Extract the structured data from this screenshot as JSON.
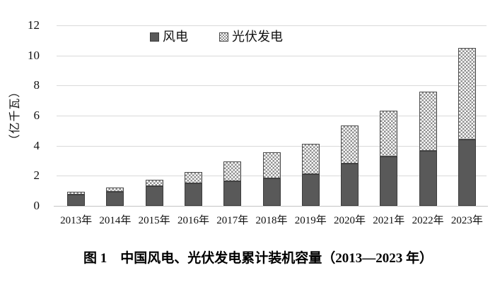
{
  "figure": {
    "caption": "图 1　中国风电、光伏发电累计装机容量（2013—2023 年）"
  },
  "chart_data": {
    "type": "bar",
    "stacked": true,
    "title": "",
    "xlabel": "",
    "ylabel": "（亿千瓦）",
    "categories": [
      "2013年",
      "2014年",
      "2015年",
      "2016年",
      "2017年",
      "2018年",
      "2019年",
      "2020年",
      "2021年",
      "2022年",
      "2023年"
    ],
    "series": [
      {
        "name": "风电",
        "values": [
          0.77,
          0.96,
          1.31,
          1.49,
          1.64,
          1.84,
          2.1,
          2.8,
          3.28,
          3.65,
          4.41
        ],
        "color": "#595959",
        "fill_style": "solid"
      },
      {
        "name": "光伏发电",
        "values": [
          0.19,
          0.28,
          0.43,
          0.77,
          1.3,
          1.74,
          2.04,
          2.53,
          3.06,
          3.93,
          6.09
        ],
        "color": "#8f8f8f",
        "fill_style": "checker-pattern"
      }
    ],
    "ylim": [
      0,
      12
    ],
    "yticks": [
      0,
      2,
      4,
      6,
      8,
      10,
      12
    ],
    "grid": "horizontal",
    "gridline_color": "#d9d9d9",
    "legend_position": "top-center"
  }
}
